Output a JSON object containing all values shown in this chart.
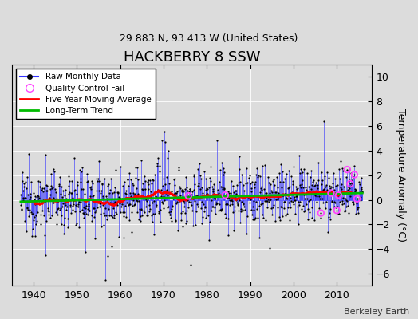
{
  "title": "HACKBERRY 8 SSW",
  "subtitle": "29.883 N, 93.413 W (United States)",
  "ylabel": "Temperature Anomaly (°C)",
  "attribution": "Berkeley Earth",
  "xlim": [
    1935,
    2018
  ],
  "ylim": [
    -7,
    11
  ],
  "yticks": [
    -6,
    -4,
    -2,
    0,
    2,
    4,
    6,
    8,
    10
  ],
  "xticks": [
    1940,
    1950,
    1960,
    1970,
    1980,
    1990,
    2000,
    2010
  ],
  "start_year": 1937,
  "end_year": 2015,
  "seed": 12345,
  "raw_color": "#3333FF",
  "ma_color": "#FF0000",
  "trend_color": "#00BB00",
  "qc_color": "#FF44FF",
  "dot_color": "#000000",
  "bg_color": "#DCDCDC",
  "grid_color": "#FFFFFF",
  "figsize": [
    5.24,
    4.0
  ],
  "dpi": 100
}
